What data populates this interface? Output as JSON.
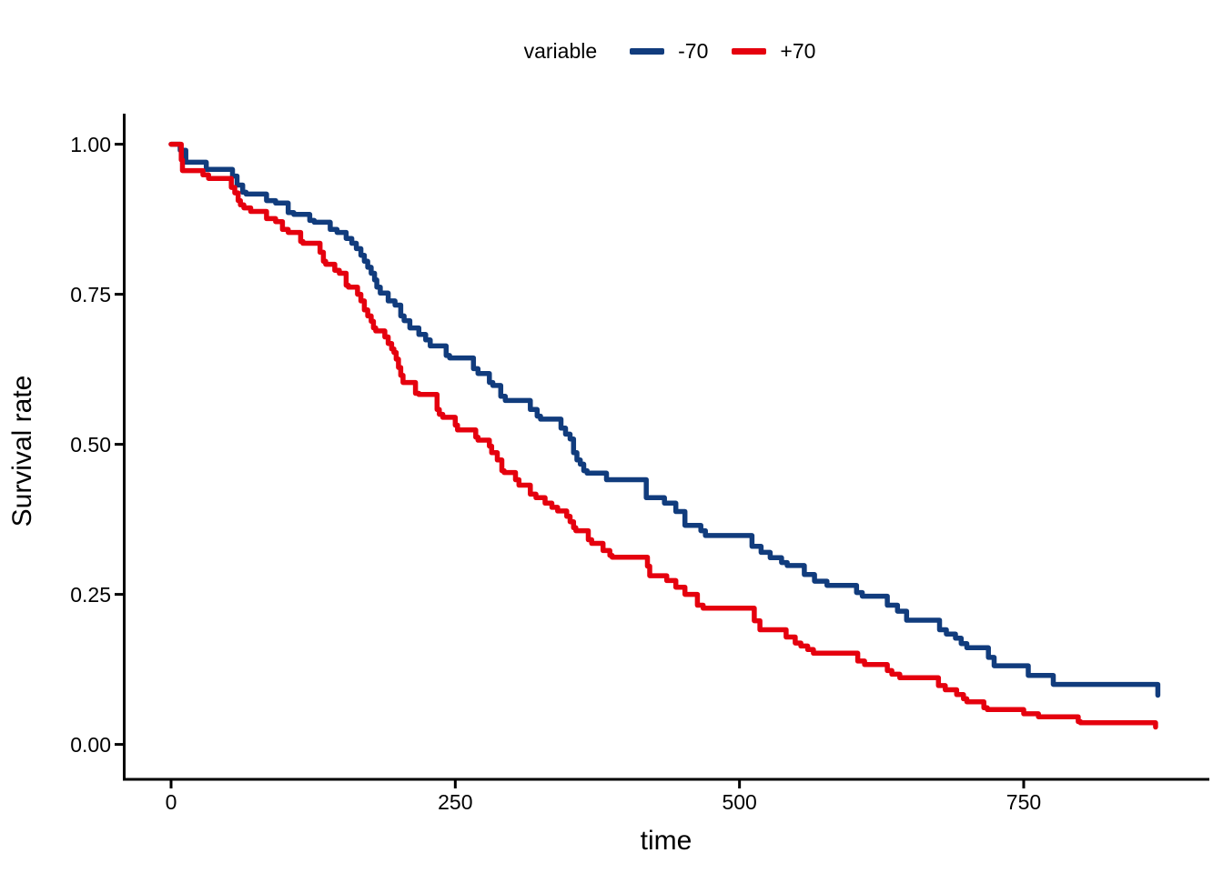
{
  "chart_data": {
    "type": "line",
    "subtype": "kaplan-meier-survival-step",
    "title": "",
    "xlabel": "time",
    "ylabel": "Survival rate",
    "xlim": [
      0,
      880
    ],
    "ylim": [
      0.0,
      1.0
    ],
    "grid": false,
    "legend_position": "top-center",
    "legend_title": "variable",
    "x_tick_labels": [
      "0",
      "250",
      "500",
      "750"
    ],
    "x_tick_values": [
      0,
      250,
      500,
      750
    ],
    "y_tick_labels": [
      "1.00",
      "0.75",
      "0.50",
      "0.25",
      "0.00"
    ],
    "y_tick_values": [
      1.0,
      0.75,
      0.5,
      0.25,
      0.0
    ],
    "series": [
      {
        "name": "-70",
        "color": "#113C7D",
        "points": [
          [
            0,
            1.0
          ],
          [
            8,
            0.99
          ],
          [
            13,
            0.97
          ],
          [
            31,
            0.958
          ],
          [
            54,
            0.947
          ],
          [
            58,
            0.932
          ],
          [
            63,
            0.92
          ],
          [
            66,
            0.917
          ],
          [
            84,
            0.906
          ],
          [
            92,
            0.902
          ],
          [
            103,
            0.886
          ],
          [
            108,
            0.883
          ],
          [
            122,
            0.873
          ],
          [
            126,
            0.87
          ],
          [
            140,
            0.858
          ],
          [
            146,
            0.853
          ],
          [
            154,
            0.843
          ],
          [
            159,
            0.835
          ],
          [
            163,
            0.826
          ],
          [
            167,
            0.815
          ],
          [
            170,
            0.805
          ],
          [
            173,
            0.795
          ],
          [
            176,
            0.785
          ],
          [
            179,
            0.774
          ],
          [
            181,
            0.762
          ],
          [
            184,
            0.752
          ],
          [
            191,
            0.739
          ],
          [
            197,
            0.732
          ],
          [
            202,
            0.714
          ],
          [
            205,
            0.706
          ],
          [
            210,
            0.694
          ],
          [
            218,
            0.683
          ],
          [
            224,
            0.674
          ],
          [
            228,
            0.664
          ],
          [
            242,
            0.648
          ],
          [
            245,
            0.644
          ],
          [
            266,
            0.626
          ],
          [
            270,
            0.618
          ],
          [
            280,
            0.603
          ],
          [
            283,
            0.598
          ],
          [
            290,
            0.58
          ],
          [
            294,
            0.573
          ],
          [
            316,
            0.558
          ],
          [
            322,
            0.547
          ],
          [
            325,
            0.542
          ],
          [
            343,
            0.527
          ],
          [
            347,
            0.517
          ],
          [
            351,
            0.509
          ],
          [
            354,
            0.486
          ],
          [
            357,
            0.474
          ],
          [
            360,
            0.467
          ],
          [
            363,
            0.456
          ],
          [
            366,
            0.452
          ],
          [
            383,
            0.441
          ],
          [
            418,
            0.411
          ],
          [
            434,
            0.402
          ],
          [
            444,
            0.388
          ],
          [
            452,
            0.365
          ],
          [
            466,
            0.356
          ],
          [
            470,
            0.348
          ],
          [
            511,
            0.33
          ],
          [
            519,
            0.32
          ],
          [
            527,
            0.311
          ],
          [
            537,
            0.303
          ],
          [
            542,
            0.298
          ],
          [
            557,
            0.283
          ],
          [
            566,
            0.272
          ],
          [
            577,
            0.265
          ],
          [
            603,
            0.253
          ],
          [
            608,
            0.247
          ],
          [
            630,
            0.232
          ],
          [
            639,
            0.222
          ],
          [
            647,
            0.207
          ],
          [
            676,
            0.191
          ],
          [
            682,
            0.184
          ],
          [
            690,
            0.177
          ],
          [
            695,
            0.168
          ],
          [
            700,
            0.161
          ],
          [
            719,
            0.145
          ],
          [
            724,
            0.131
          ],
          [
            754,
            0.115
          ],
          [
            776,
            0.1
          ],
          [
            866,
            0.1
          ],
          [
            868,
            0.082
          ]
        ]
      },
      {
        "name": "+70",
        "color": "#E5000E",
        "points": [
          [
            0,
            1.0
          ],
          [
            9,
            0.974
          ],
          [
            10,
            0.956
          ],
          [
            28,
            0.949
          ],
          [
            33,
            0.943
          ],
          [
            53,
            0.928
          ],
          [
            56,
            0.919
          ],
          [
            59,
            0.906
          ],
          [
            61,
            0.899
          ],
          [
            64,
            0.894
          ],
          [
            70,
            0.888
          ],
          [
            84,
            0.876
          ],
          [
            92,
            0.871
          ],
          [
            98,
            0.858
          ],
          [
            103,
            0.853
          ],
          [
            114,
            0.838
          ],
          [
            116,
            0.835
          ],
          [
            131,
            0.82
          ],
          [
            134,
            0.805
          ],
          [
            136,
            0.8
          ],
          [
            144,
            0.79
          ],
          [
            148,
            0.785
          ],
          [
            154,
            0.765
          ],
          [
            156,
            0.762
          ],
          [
            164,
            0.75
          ],
          [
            167,
            0.739
          ],
          [
            170,
            0.724
          ],
          [
            173,
            0.714
          ],
          [
            176,
            0.705
          ],
          [
            178,
            0.694
          ],
          [
            180,
            0.689
          ],
          [
            188,
            0.679
          ],
          [
            191,
            0.668
          ],
          [
            194,
            0.659
          ],
          [
            196,
            0.653
          ],
          [
            198,
            0.642
          ],
          [
            200,
            0.628
          ],
          [
            202,
            0.615
          ],
          [
            204,
            0.603
          ],
          [
            215,
            0.585
          ],
          [
            218,
            0.583
          ],
          [
            234,
            0.558
          ],
          [
            236,
            0.55
          ],
          [
            239,
            0.545
          ],
          [
            250,
            0.532
          ],
          [
            252,
            0.524
          ],
          [
            268,
            0.512
          ],
          [
            270,
            0.507
          ],
          [
            280,
            0.497
          ],
          [
            282,
            0.486
          ],
          [
            287,
            0.474
          ],
          [
            291,
            0.456
          ],
          [
            293,
            0.453
          ],
          [
            303,
            0.441
          ],
          [
            306,
            0.432
          ],
          [
            316,
            0.417
          ],
          [
            321,
            0.411
          ],
          [
            329,
            0.402
          ],
          [
            335,
            0.395
          ],
          [
            340,
            0.389
          ],
          [
            348,
            0.38
          ],
          [
            351,
            0.371
          ],
          [
            354,
            0.361
          ],
          [
            356,
            0.356
          ],
          [
            367,
            0.341
          ],
          [
            370,
            0.335
          ],
          [
            380,
            0.323
          ],
          [
            386,
            0.315
          ],
          [
            388,
            0.312
          ],
          [
            419,
            0.297
          ],
          [
            421,
            0.281
          ],
          [
            436,
            0.273
          ],
          [
            444,
            0.262
          ],
          [
            452,
            0.25
          ],
          [
            463,
            0.232
          ],
          [
            468,
            0.227
          ],
          [
            513,
            0.206
          ],
          [
            518,
            0.191
          ],
          [
            541,
            0.179
          ],
          [
            549,
            0.169
          ],
          [
            554,
            0.164
          ],
          [
            560,
            0.158
          ],
          [
            565,
            0.152
          ],
          [
            604,
            0.139
          ],
          [
            610,
            0.133
          ],
          [
            630,
            0.123
          ],
          [
            634,
            0.117
          ],
          [
            641,
            0.111
          ],
          [
            675,
            0.098
          ],
          [
            681,
            0.091
          ],
          [
            691,
            0.083
          ],
          [
            697,
            0.076
          ],
          [
            700,
            0.071
          ],
          [
            715,
            0.061
          ],
          [
            718,
            0.058
          ],
          [
            750,
            0.051
          ],
          [
            763,
            0.046
          ],
          [
            798,
            0.038
          ],
          [
            800,
            0.036
          ],
          [
            864,
            0.036
          ],
          [
            866,
            0.029
          ]
        ]
      }
    ]
  },
  "colors": {
    "axis": "#000000",
    "background": "#FFFFFF",
    "text": "#000000"
  }
}
